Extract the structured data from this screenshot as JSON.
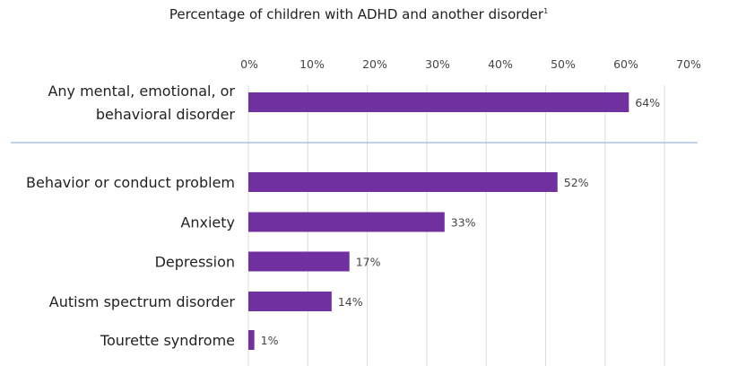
{
  "chart_data": {
    "type": "bar",
    "orientation": "horizontal",
    "title": "Percentage of children with ADHD and another disorder",
    "title_footnote": "1",
    "categories": [
      [
        "Any mental, emotional, or",
        "behavioral disorder"
      ],
      [
        "Behavior or conduct problem"
      ],
      [
        "Anxiety"
      ],
      [
        "Depression"
      ],
      [
        "Autism spectrum disorder"
      ],
      [
        "Tourette syndrome"
      ]
    ],
    "values": [
      64,
      52,
      33,
      17,
      14,
      1
    ],
    "data_labels": [
      "64%",
      "52%",
      "33%",
      "17%",
      "14%",
      "1%"
    ],
    "x_ticks": [
      "0%",
      "10%",
      "20%",
      "30%",
      "40%",
      "50%",
      "60%",
      "70%"
    ],
    "xlim": [
      0,
      70
    ],
    "x_axis_position": "top",
    "grid": true,
    "separator_after_first": true,
    "bar_color": "#7030a0",
    "grid_color": "#dcdcdc",
    "separator_color": "#9bb7d4"
  }
}
